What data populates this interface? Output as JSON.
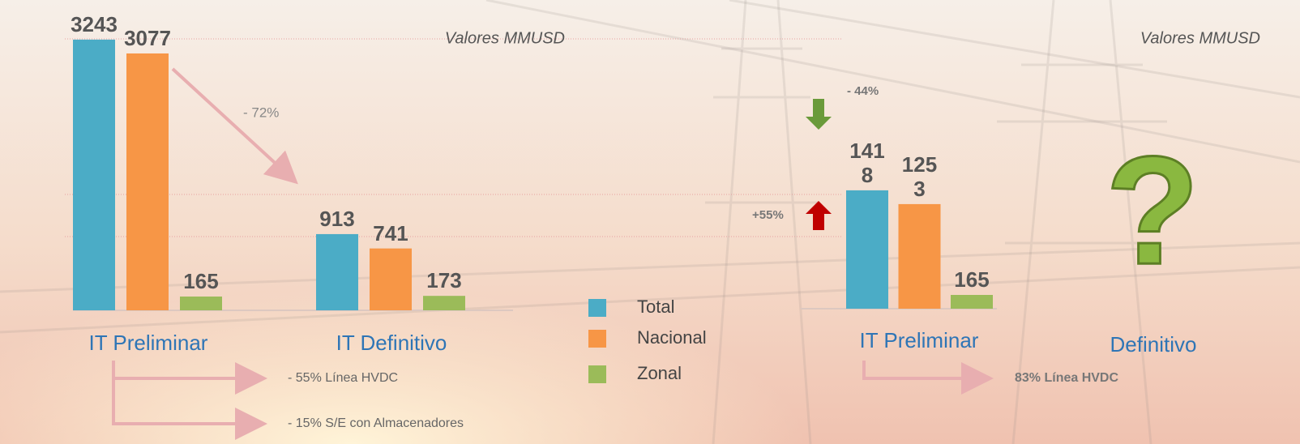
{
  "chart_data": [
    {
      "type": "bar",
      "categories": [
        "IT Preliminar",
        "IT Definitivo"
      ],
      "series": [
        {
          "name": "Total",
          "color": "#4bacc6",
          "values": [
            3243,
            913
          ]
        },
        {
          "name": "Nacional",
          "color": "#f79646",
          "values": [
            3077,
            741
          ]
        },
        {
          "name": "Zonal",
          "color": "#9bbb59",
          "values": [
            165,
            173
          ]
        }
      ],
      "ylim": [
        0,
        3300
      ],
      "annotations": [
        "Valores MMUSD",
        "- 72%",
        "- 55% Línea HVDC",
        "- 15% S/E con Almacenadores"
      ]
    },
    {
      "type": "bar",
      "categories": [
        "IT Preliminar",
        "Definitivo"
      ],
      "series": [
        {
          "color": "#4bacc6",
          "values": [
            1418,
            null
          ]
        },
        {
          "color": "#f79646",
          "values": [
            1253,
            null
          ]
        },
        {
          "color": "#9bbb59",
          "values": [
            165,
            null
          ]
        }
      ],
      "ylim": [
        0,
        3300
      ],
      "annotations": [
        "Valores MMUSD",
        "- 44%",
        "+55%",
        "83% Línea HVDC"
      ]
    }
  ]
}
